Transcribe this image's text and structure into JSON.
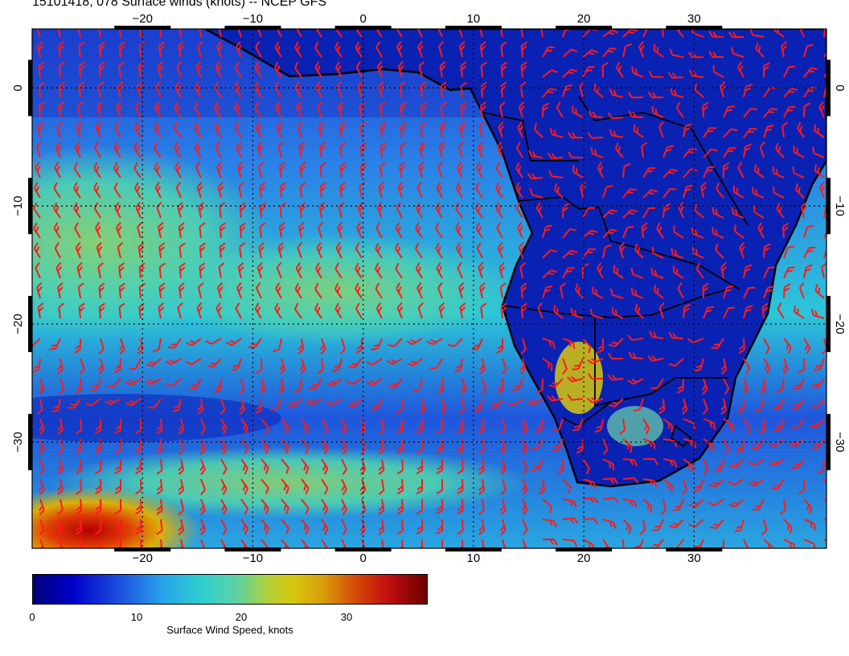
{
  "title": "15101418, 078 Surface winds (knots) -- NCEP GFS",
  "map": {
    "variable": "Surface wind speed",
    "units": "knots",
    "lon_range": [
      -30,
      42
    ],
    "lat_range": [
      5,
      -39
    ],
    "lon_ticks": [
      "-20",
      "-10",
      "0",
      "10",
      "20",
      "30"
    ],
    "lat_ticks": [
      "0",
      "-10",
      "-20",
      "-30"
    ],
    "landmass": "Africa (southern and central), South Atlantic Ocean",
    "colors": {
      "calm": "#00007a",
      "moderate": "#2fd0cf",
      "fresh": "#d6c80e",
      "strong": "#c20f0f",
      "barb": "#ff1a1a",
      "coastline": "#000000"
    }
  },
  "colorbar": {
    "title": "Surface Wind Speed, knots",
    "range": [
      0,
      38
    ],
    "tick_labels": [
      "0",
      "10",
      "20",
      "30"
    ]
  }
}
